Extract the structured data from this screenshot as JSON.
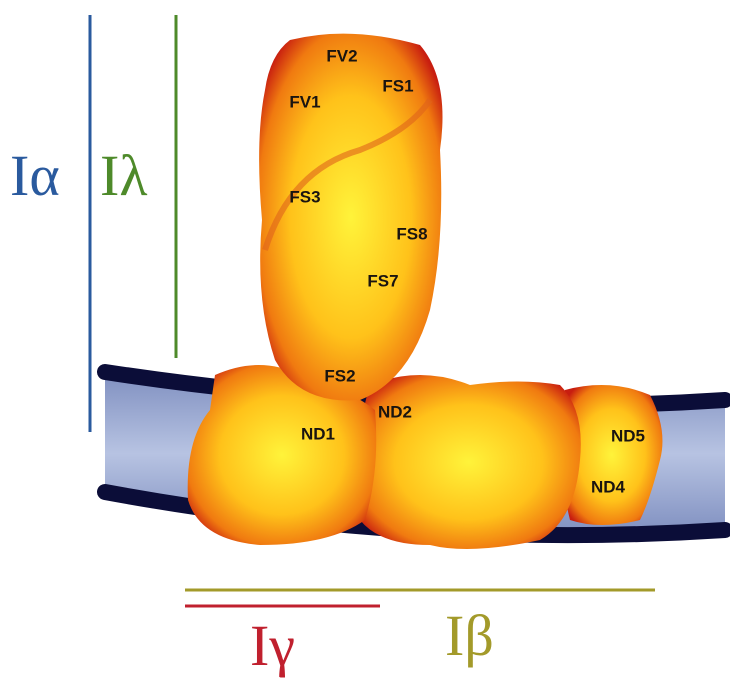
{
  "domains": [
    "Iα",
    "Iλ",
    "Iγ",
    "Iβ"
  ],
  "subunits": [
    "FV2",
    "FS1",
    "FV1",
    "FS3",
    "FS8",
    "FS7",
    "FS2",
    "ND2",
    "ND1",
    "ND5",
    "ND4"
  ]
}
